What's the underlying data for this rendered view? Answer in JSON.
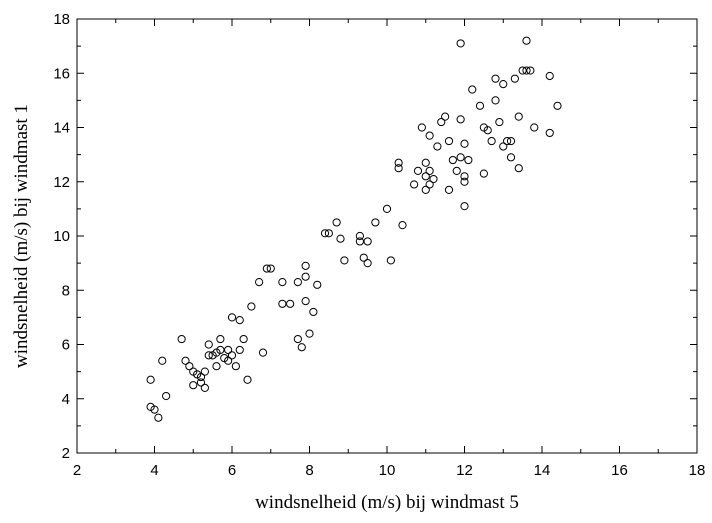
{
  "chart_data": {
    "type": "scatter",
    "title": "",
    "xlabel": "windsnelheid (m/s) bij windmast 5",
    "ylabel": "windsnelheid (m/s) bij windmast 1",
    "xlim": [
      2,
      18
    ],
    "ylim": [
      2,
      18
    ],
    "x_ticks": [
      "2",
      "4",
      "6",
      "8",
      "10",
      "12",
      "14",
      "16",
      "18"
    ],
    "y_ticks": [
      "2",
      "4",
      "6",
      "8",
      "10",
      "12",
      "14",
      "16",
      "18"
    ],
    "grid": false,
    "legend": "none",
    "marker": "open-circle",
    "series": [
      {
        "points": [
          [
            3.9,
            4.7
          ],
          [
            4.0,
            3.6
          ],
          [
            3.9,
            3.7
          ],
          [
            4.1,
            3.3
          ],
          [
            4.2,
            5.4
          ],
          [
            4.3,
            4.1
          ],
          [
            4.7,
            6.2
          ],
          [
            4.8,
            5.4
          ],
          [
            4.9,
            5.2
          ],
          [
            5.0,
            4.5
          ],
          [
            5.1,
            4.9
          ],
          [
            5.0,
            5.0
          ],
          [
            5.2,
            4.8
          ],
          [
            5.2,
            4.6
          ],
          [
            5.3,
            4.4
          ],
          [
            5.3,
            5.0
          ],
          [
            5.4,
            5.6
          ],
          [
            5.4,
            6.0
          ],
          [
            5.5,
            5.6
          ],
          [
            5.6,
            5.7
          ],
          [
            5.6,
            5.2
          ],
          [
            5.7,
            6.2
          ],
          [
            5.7,
            5.8
          ],
          [
            5.8,
            5.5
          ],
          [
            5.9,
            5.8
          ],
          [
            5.9,
            5.4
          ],
          [
            6.0,
            7.0
          ],
          [
            6.0,
            5.6
          ],
          [
            6.1,
            5.2
          ],
          [
            6.2,
            5.8
          ],
          [
            6.2,
            6.9
          ],
          [
            6.3,
            6.2
          ],
          [
            6.4,
            4.7
          ],
          [
            6.5,
            7.4
          ],
          [
            6.7,
            8.3
          ],
          [
            6.8,
            5.7
          ],
          [
            6.9,
            8.8
          ],
          [
            7.0,
            8.8
          ],
          [
            7.3,
            8.3
          ],
          [
            7.3,
            7.5
          ],
          [
            7.5,
            7.5
          ],
          [
            7.7,
            8.3
          ],
          [
            7.7,
            6.2
          ],
          [
            7.8,
            5.9
          ],
          [
            7.9,
            7.6
          ],
          [
            7.9,
            8.5
          ],
          [
            7.9,
            8.9
          ],
          [
            8.0,
            6.4
          ],
          [
            8.1,
            7.2
          ],
          [
            8.2,
            8.2
          ],
          [
            8.4,
            10.1
          ],
          [
            8.5,
            10.1
          ],
          [
            8.7,
            10.5
          ],
          [
            8.8,
            9.9
          ],
          [
            8.9,
            9.1
          ],
          [
            9.3,
            10.0
          ],
          [
            9.3,
            9.8
          ],
          [
            9.4,
            9.2
          ],
          [
            9.5,
            9.8
          ],
          [
            9.5,
            9.0
          ],
          [
            9.7,
            10.5
          ],
          [
            10.0,
            11.0
          ],
          [
            10.1,
            9.1
          ],
          [
            10.3,
            12.5
          ],
          [
            10.3,
            12.7
          ],
          [
            10.4,
            10.4
          ],
          [
            10.7,
            11.9
          ],
          [
            10.8,
            12.4
          ],
          [
            10.9,
            14.0
          ],
          [
            11.0,
            12.7
          ],
          [
            11.0,
            11.7
          ],
          [
            11.0,
            12.2
          ],
          [
            11.1,
            13.7
          ],
          [
            11.1,
            12.4
          ],
          [
            11.1,
            11.9
          ],
          [
            11.2,
            12.1
          ],
          [
            11.3,
            13.3
          ],
          [
            11.4,
            14.2
          ],
          [
            11.5,
            14.4
          ],
          [
            11.6,
            13.5
          ],
          [
            11.6,
            11.7
          ],
          [
            11.7,
            12.8
          ],
          [
            11.8,
            12.4
          ],
          [
            11.9,
            17.1
          ],
          [
            11.9,
            14.3
          ],
          [
            11.9,
            12.9
          ],
          [
            12.0,
            13.4
          ],
          [
            12.0,
            12.2
          ],
          [
            12.0,
            11.1
          ],
          [
            12.0,
            12.0
          ],
          [
            12.1,
            12.8
          ],
          [
            12.2,
            15.4
          ],
          [
            12.4,
            14.8
          ],
          [
            12.5,
            14.0
          ],
          [
            12.5,
            12.3
          ],
          [
            12.6,
            13.9
          ],
          [
            12.7,
            13.5
          ],
          [
            12.8,
            15.8
          ],
          [
            12.8,
            15.0
          ],
          [
            12.9,
            14.2
          ],
          [
            13.0,
            15.6
          ],
          [
            13.0,
            13.3
          ],
          [
            13.1,
            13.5
          ],
          [
            13.2,
            13.5
          ],
          [
            13.2,
            12.9
          ],
          [
            13.3,
            15.8
          ],
          [
            13.4,
            14.4
          ],
          [
            13.4,
            12.5
          ],
          [
            13.5,
            16.1
          ],
          [
            13.6,
            17.2
          ],
          [
            13.6,
            16.1
          ],
          [
            13.7,
            16.1
          ],
          [
            13.8,
            14.0
          ],
          [
            14.2,
            15.9
          ],
          [
            14.2,
            13.8
          ],
          [
            14.4,
            14.8
          ]
        ]
      }
    ]
  }
}
